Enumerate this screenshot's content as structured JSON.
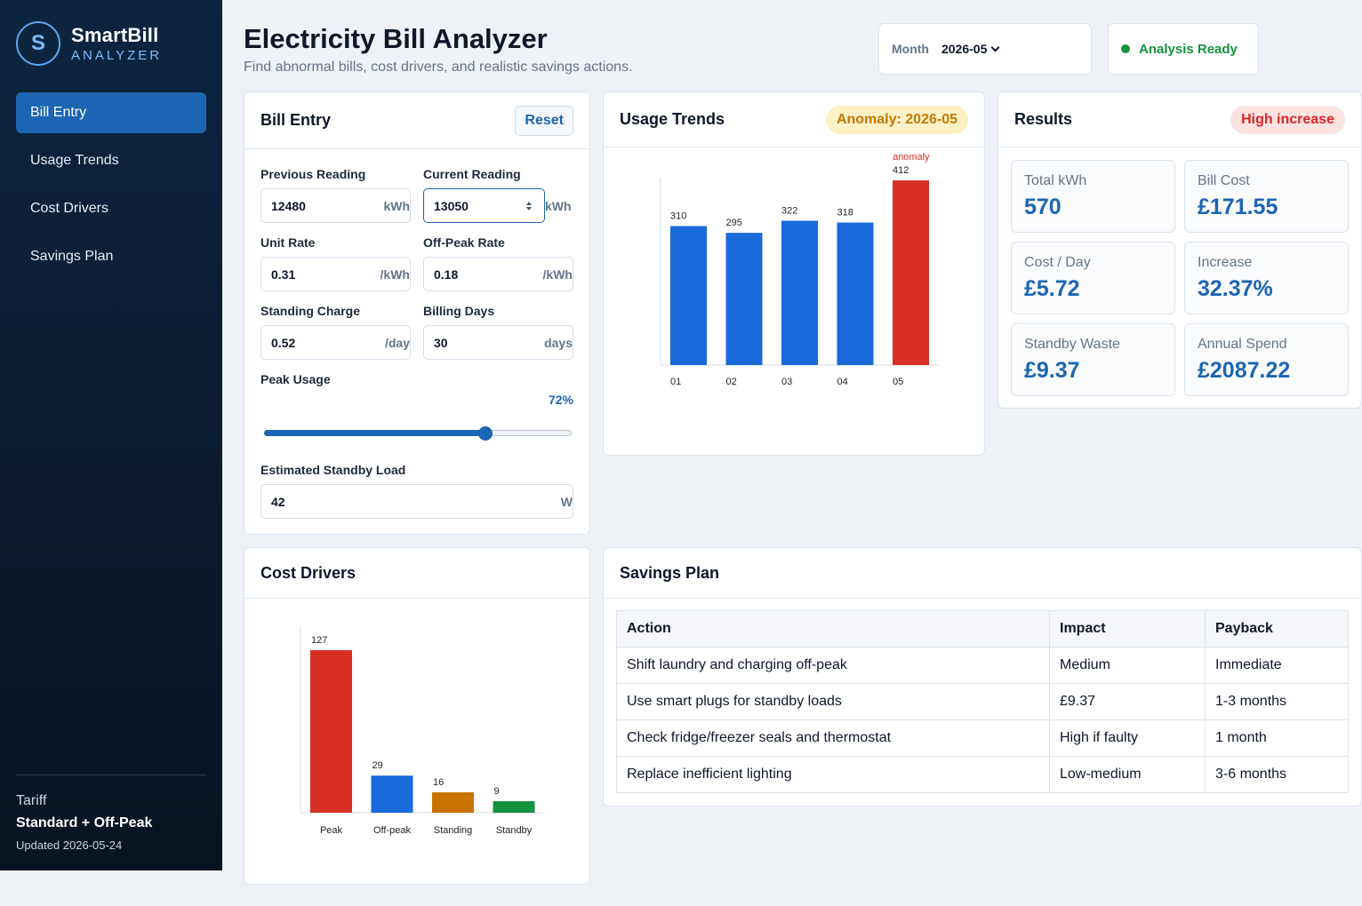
{
  "app": {
    "logo_letter": "S",
    "name": "SmartBill",
    "subtitle": "ANALYZER"
  },
  "nav": [
    {
      "label": "Bill Entry",
      "active": true
    },
    {
      "label": "Usage Trends",
      "active": false
    },
    {
      "label": "Cost Drivers",
      "active": false
    },
    {
      "label": "Savings Plan",
      "active": false
    }
  ],
  "tariff": {
    "label": "Tariff",
    "value": "Standard + Off-Peak",
    "updated": "Updated 2026-05-24"
  },
  "header": {
    "title": "Electricity Bill Analyzer",
    "subtitle": "Find abnormal bills, cost drivers, and realistic savings actions.",
    "month_label": "Month",
    "month_value": "2026-05",
    "status": "Analysis Ready",
    "status_color": "#16913f"
  },
  "bill_entry": {
    "title": "Bill Entry",
    "reset_label": "Reset",
    "previous_reading": {
      "label": "Previous Reading",
      "value": "12480",
      "unit": "kWh"
    },
    "current_reading": {
      "label": "Current Reading",
      "value": "13050",
      "unit": "kWh"
    },
    "unit_rate": {
      "label": "Unit Rate",
      "value": "0.31",
      "unit": "/kWh"
    },
    "off_peak_rate": {
      "label": "Off-Peak Rate",
      "value": "0.18",
      "unit": "/kWh"
    },
    "standing_charge": {
      "label": "Standing Charge",
      "value": "0.52",
      "unit": "/day"
    },
    "billing_days": {
      "label": "Billing Days",
      "value": "30",
      "unit": "days"
    },
    "peak_usage": {
      "label": "Peak Usage",
      "value_text": "72%",
      "fraction": 0.72
    },
    "standby_load": {
      "label": "Estimated Standby Load",
      "value": "42",
      "unit": "W"
    }
  },
  "usage_trends": {
    "title": "Usage Trends",
    "badge": "Anomaly: 2026-05",
    "chart_data": {
      "type": "bar",
      "categories": [
        "01",
        "02",
        "03",
        "04",
        "05"
      ],
      "values": [
        310,
        295,
        322,
        318,
        412
      ],
      "annotations": [
        {
          "category": "05",
          "text": "anomaly"
        }
      ],
      "colors": {
        "normal": "#1a6ad9",
        "anomaly": "#d93025"
      },
      "ylim": [
        0,
        430
      ]
    }
  },
  "results": {
    "title": "Results",
    "badge": "High increase",
    "tiles": [
      {
        "label": "Total kWh",
        "value": "570"
      },
      {
        "label": "Bill Cost",
        "value": "£171.55"
      },
      {
        "label": "Cost / Day",
        "value": "£5.72"
      },
      {
        "label": "Increase",
        "value": "32.37%"
      },
      {
        "label": "Standby Waste",
        "value": "£9.37"
      },
      {
        "label": "Annual Spend",
        "value": "£2087.22"
      }
    ]
  },
  "cost_drivers": {
    "title": "Cost Drivers",
    "chart_data": {
      "type": "bar",
      "categories": [
        "Peak",
        "Off-peak",
        "Standing",
        "Standby"
      ],
      "values": [
        127,
        29,
        16,
        9
      ],
      "colors": [
        "#d93025",
        "#1a6ad9",
        "#c97303",
        "#16913f"
      ],
      "ylim": [
        0,
        140
      ]
    }
  },
  "savings_plan": {
    "title": "Savings Plan",
    "columns": [
      "Action",
      "Impact",
      "Payback"
    ],
    "rows": [
      [
        "Shift laundry and charging off-peak",
        "Medium",
        "Immediate"
      ],
      [
        "Use smart plugs for standby loads",
        "£9.37",
        "1-3 months"
      ],
      [
        "Check fridge/freezer seals and thermostat",
        "High if faulty",
        "1 month"
      ],
      [
        "Replace inefficient lighting",
        "Low-medium",
        "3-6 months"
      ]
    ]
  }
}
